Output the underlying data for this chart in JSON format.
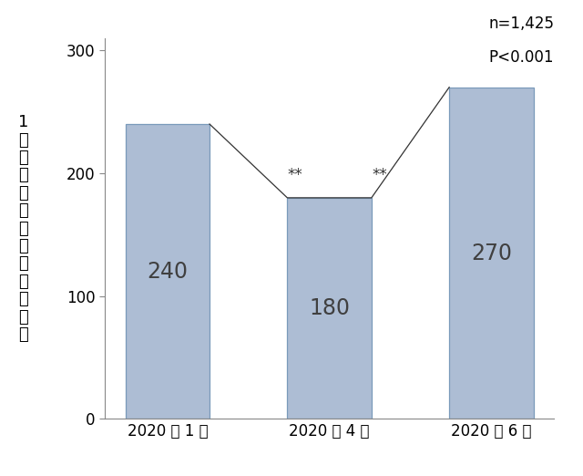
{
  "categories": [
    "2020 年 1 月",
    "2020 年 4 月",
    "2020 年 6 月"
  ],
  "values": [
    240,
    180,
    270
  ],
  "bar_color": "#adbdd4",
  "bar_edgecolor": "#7a9aba",
  "value_labels": [
    "240",
    "180",
    "270"
  ],
  "ylabel_line1": "1",
  "ylabel_line2": "週間の身体活動",
  "ylabel_line3": "時間（分）",
  "ylim": [
    0,
    310
  ],
  "yticks": [
    0,
    100,
    200,
    300
  ],
  "annotation_n": "n=1,425",
  "annotation_p": "P<0.001",
  "significance_label": "**",
  "background_color": "#ffffff",
  "bar_width": 0.52,
  "value_fontsize": 17,
  "tick_fontsize": 12,
  "ylabel_fontsize": 13,
  "annot_fontsize": 12
}
